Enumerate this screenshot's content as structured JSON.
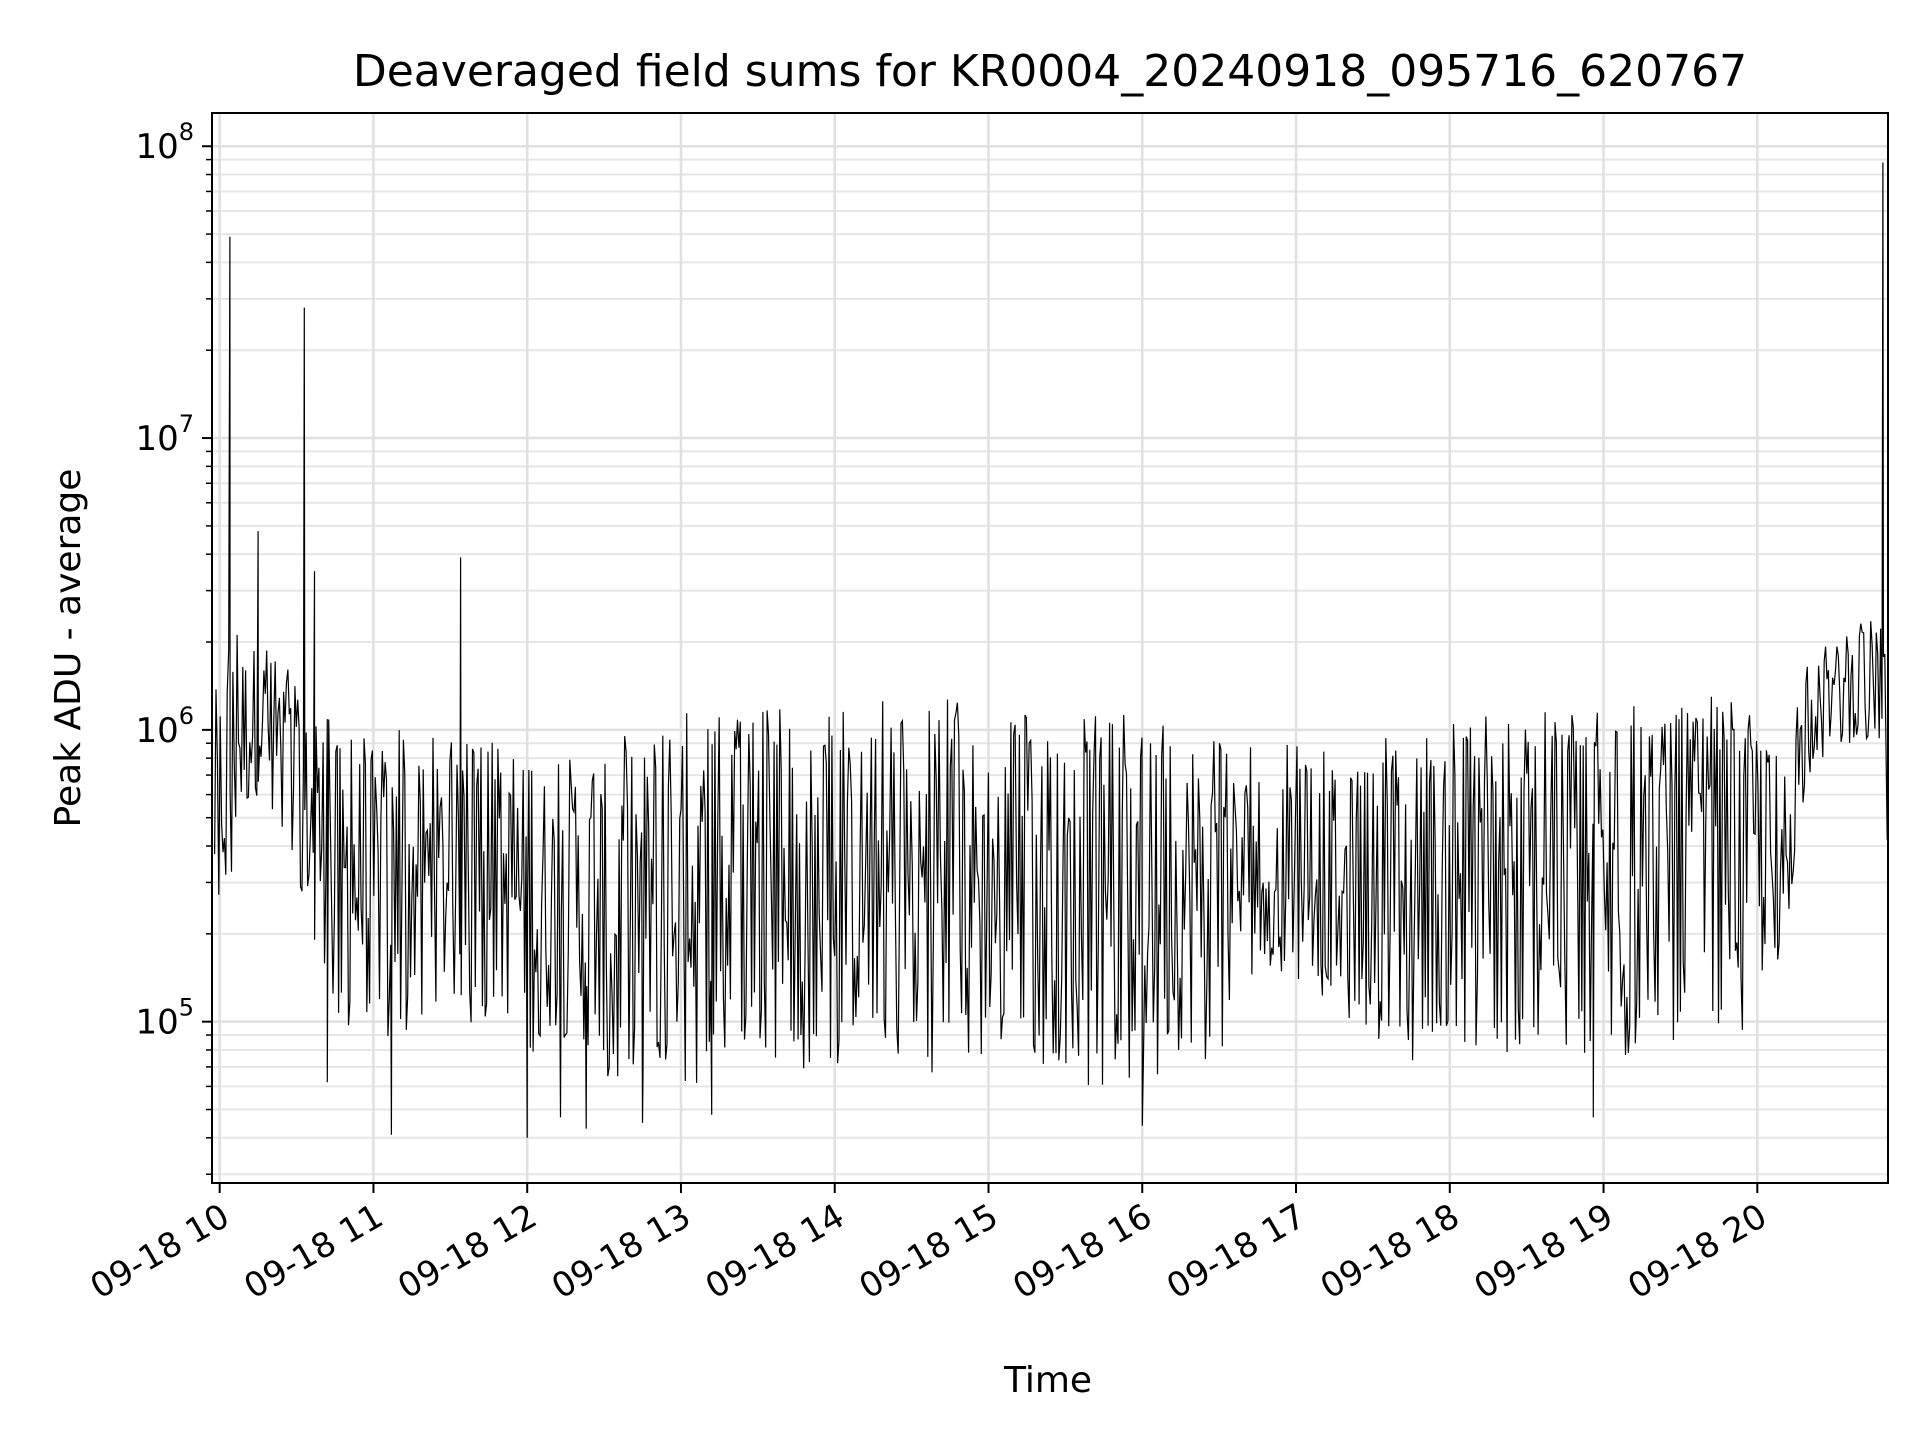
{
  "chart_data": {
    "type": "line",
    "title": "Deaveraged field sums for KR0004_20240918_095716_620767",
    "xlabel": "Time",
    "ylabel": "Peak ADU - average",
    "yscale": "log",
    "ylim": [
      28000,
      130000000
    ],
    "xlim": [
      "2024-09-18 09:57",
      "2024-09-18 20:51"
    ],
    "grid": true,
    "line_color": "#000000",
    "x_ticks": [
      {
        "value": "2024-09-18 10:00",
        "label": "09-18 10"
      },
      {
        "value": "2024-09-18 11:00",
        "label": "09-18 11"
      },
      {
        "value": "2024-09-18 12:00",
        "label": "09-18 12"
      },
      {
        "value": "2024-09-18 13:00",
        "label": "09-18 13"
      },
      {
        "value": "2024-09-18 14:00",
        "label": "09-18 14"
      },
      {
        "value": "2024-09-18 15:00",
        "label": "09-18 15"
      },
      {
        "value": "2024-09-18 16:00",
        "label": "09-18 16"
      },
      {
        "value": "2024-09-18 17:00",
        "label": "09-18 17"
      },
      {
        "value": "2024-09-18 18:00",
        "label": "09-18 18"
      },
      {
        "value": "2024-09-18 19:00",
        "label": "09-18 19"
      },
      {
        "value": "2024-09-18 20:00",
        "label": "09-18 20"
      }
    ],
    "y_ticks": [
      {
        "value": 100000,
        "base": "10",
        "exp": "5"
      },
      {
        "value": 1000000,
        "base": "10",
        "exp": "6"
      },
      {
        "value": 10000000,
        "base": "10",
        "exp": "7"
      },
      {
        "value": 100000000,
        "base": "10",
        "exp": "8"
      }
    ],
    "envelope": [
      {
        "t": "2024-09-18 09:57",
        "low": 170000,
        "high": 1500000
      },
      {
        "t": "2024-09-18 10:05",
        "low": 300000,
        "high": 2300000
      },
      {
        "t": "2024-09-18 10:15",
        "low": 600000,
        "high": 2200000
      },
      {
        "t": "2024-09-18 10:25",
        "low": 400000,
        "high": 1800000
      },
      {
        "t": "2024-09-18 10:35",
        "low": 200000,
        "high": 1200000
      },
      {
        "t": "2024-09-18 10:45",
        "low": 100000,
        "high": 1100000
      },
      {
        "t": "2024-09-18 11:00",
        "low": 80000,
        "high": 1050000
      },
      {
        "t": "2024-09-18 11:20",
        "low": 100000,
        "high": 1000000
      },
      {
        "t": "2024-09-18 11:40",
        "low": 90000,
        "high": 900000
      },
      {
        "t": "2024-09-18 12:00",
        "low": 80000,
        "high": 950000
      },
      {
        "t": "2024-09-18 12:20",
        "low": 70000,
        "high": 800000
      },
      {
        "t": "2024-09-18 12:40",
        "low": 55000,
        "high": 1100000
      },
      {
        "t": "2024-09-18 13:00",
        "low": 60000,
        "high": 1200000
      },
      {
        "t": "2024-09-18 13:30",
        "low": 65000,
        "high": 1200000
      },
      {
        "t": "2024-09-18 14:00",
        "low": 70000,
        "high": 1150000
      },
      {
        "t": "2024-09-18 14:30",
        "low": 65000,
        "high": 1350000
      },
      {
        "t": "2024-09-18 14:50",
        "low": 70000,
        "high": 1300000
      },
      {
        "t": "2024-09-18 15:00",
        "low": 75000,
        "high": 1200000
      },
      {
        "t": "2024-09-18 15:30",
        "low": 60000,
        "high": 1100000
      },
      {
        "t": "2024-09-18 16:00",
        "low": 60000,
        "high": 1150000
      },
      {
        "t": "2024-09-18 16:30",
        "low": 70000,
        "high": 1000000
      },
      {
        "t": "2024-09-18 16:45",
        "low": 150000,
        "high": 850000
      },
      {
        "t": "2024-09-18 17:00",
        "low": 140000,
        "high": 900000
      },
      {
        "t": "2024-09-18 17:20",
        "low": 100000,
        "high": 850000
      },
      {
        "t": "2024-09-18 17:45",
        "low": 70000,
        "high": 1000000
      },
      {
        "t": "2024-09-18 18:00",
        "low": 75000,
        "high": 1100000
      },
      {
        "t": "2024-09-18 18:30",
        "low": 70000,
        "high": 1200000
      },
      {
        "t": "2024-09-18 19:00",
        "low": 70000,
        "high": 1200000
      },
      {
        "t": "2024-09-18 19:30",
        "low": 85000,
        "high": 1350000
      },
      {
        "t": "2024-09-18 19:55",
        "low": 90000,
        "high": 1250000
      },
      {
        "t": "2024-09-18 20:10",
        "low": 150000,
        "high": 900000
      },
      {
        "t": "2024-09-18 20:20",
        "low": 700000,
        "high": 1700000
      },
      {
        "t": "2024-09-18 20:35",
        "low": 900000,
        "high": 2300000
      },
      {
        "t": "2024-09-18 20:45",
        "low": 800000,
        "high": 2400000
      }
    ],
    "spikes": [
      {
        "t": "2024-09-18 10:04",
        "value": 49000000
      },
      {
        "t": "2024-09-18 10:15",
        "value": 4800000
      },
      {
        "t": "2024-09-18 10:33",
        "value": 28000000
      },
      {
        "t": "2024-09-18 10:37",
        "value": 3500000
      },
      {
        "t": "2024-09-18 11:34",
        "value": 3900000
      },
      {
        "t": "2024-09-18 20:49",
        "value": 88000000
      }
    ],
    "dips": [
      {
        "t": "2024-09-18 10:42",
        "value": 62000
      },
      {
        "t": "2024-09-18 11:07",
        "value": 41000
      },
      {
        "t": "2024-09-18 12:00",
        "value": 40000
      },
      {
        "t": "2024-09-18 12:13",
        "value": 47000
      },
      {
        "t": "2024-09-18 12:23",
        "value": 43000
      },
      {
        "t": "2024-09-18 12:45",
        "value": 45000
      },
      {
        "t": "2024-09-18 13:12",
        "value": 48000
      },
      {
        "t": "2024-09-18 16:00",
        "value": 44000
      },
      {
        "t": "2024-09-18 18:56",
        "value": 47000
      }
    ]
  }
}
